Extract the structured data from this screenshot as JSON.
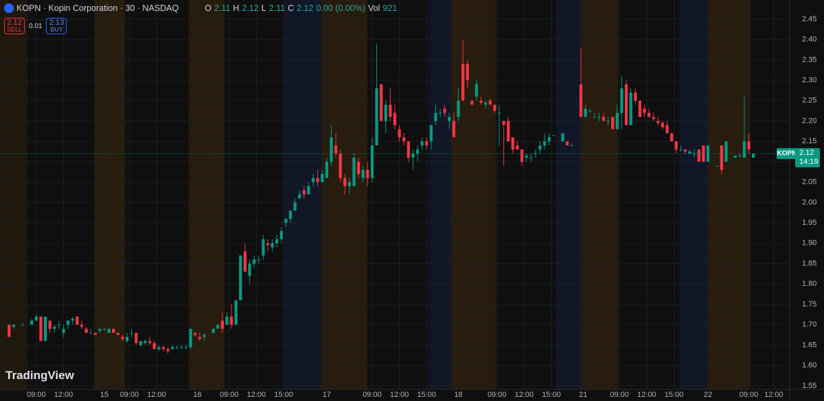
{
  "header": {
    "title": "KOPN · Kopin Corporation · 30 · NASDAQ",
    "o_label": "O",
    "open": 2.11,
    "h_label": "H",
    "high": 2.12,
    "l_label": "L",
    "low": 2.11,
    "c_label": "C",
    "close": 2.12,
    "change": "0.00 (0.00%)",
    "vol_label": "Vol",
    "volume": 921,
    "sell_price": 2.12,
    "sell_label": "SELL",
    "spread": 0.01,
    "buy_price": 2.13,
    "buy_label": "BUY",
    "logo": "TradingView"
  },
  "chart_data": {
    "type": "candlestick",
    "up_color": "#089981",
    "down_color": "#f23645",
    "xlim": [
      -2,
      172
    ],
    "ylim": [
      1.538,
      2.497
    ],
    "yticks": [
      1.55,
      {
        "value": 1.6,
        "label": "1.60"
      },
      1.65,
      {
        "value": 1.7,
        "label": "1.70"
      },
      1.75,
      {
        "value": 1.8,
        "label": "1.80"
      },
      1.85,
      {
        "value": 1.9,
        "label": "1.90"
      },
      1.95,
      {
        "value": 2,
        "label": "2.00"
      },
      2.05,
      {
        "value": 2.1,
        "label": "2.10"
      },
      2.15,
      {
        "value": 2.2,
        "label": "2.20"
      },
      2.25,
      {
        "value": 2.3,
        "label": "2.30"
      },
      2.35,
      {
        "value": 2.4,
        "label": "2.40"
      },
      2.45
    ],
    "xticks": [
      {
        "value": 6,
        "label": "09:00"
      },
      {
        "value": 12,
        "label": "12:00"
      },
      {
        "value": 21,
        "label": "15"
      },
      {
        "value": 26.5,
        "label": "09:00"
      },
      {
        "value": 32.5,
        "label": "12:00"
      },
      {
        "value": 41.5,
        "label": "16"
      },
      {
        "value": 48.5,
        "label": "09:00"
      },
      {
        "value": 54.5,
        "label": "12:00"
      },
      {
        "value": 60.5,
        "label": "15:00"
      },
      {
        "value": 70,
        "label": "17"
      },
      {
        "value": 80,
        "label": "09:00"
      },
      {
        "value": 86,
        "label": "12:00"
      },
      {
        "value": 92,
        "label": "15:00"
      },
      {
        "value": 99,
        "label": "18"
      },
      {
        "value": 107.5,
        "label": "09:00"
      },
      {
        "value": 113.5,
        "label": "12:00"
      },
      {
        "value": 119.5,
        "label": "15:00"
      },
      {
        "value": 126.5,
        "label": "21"
      },
      {
        "value": 134.5,
        "label": "09:00"
      },
      {
        "value": 140.5,
        "label": "12:00"
      },
      {
        "value": 146.5,
        "label": "15:00"
      },
      {
        "value": 154,
        "label": "22"
      },
      {
        "value": 163,
        "label": "09:00"
      },
      {
        "value": 168.5,
        "label": "12:00"
      }
    ],
    "x": [
      0,
      1,
      3,
      5,
      6,
      7,
      8,
      9,
      10,
      11,
      12,
      13,
      14,
      15,
      16,
      17,
      18,
      19,
      20,
      21,
      22,
      23,
      24,
      25,
      26,
      27,
      28,
      29,
      30,
      31,
      32,
      33,
      34,
      35,
      36,
      37,
      38,
      39,
      40,
      41,
      42,
      43,
      45,
      46,
      47,
      48,
      49,
      50,
      51,
      52,
      53,
      54,
      55,
      56,
      57,
      58,
      59,
      60,
      61,
      62,
      63,
      64,
      65,
      66,
      67,
      68,
      69,
      70,
      71,
      72,
      73,
      74,
      75,
      76,
      77,
      78,
      79,
      80,
      81,
      82,
      83,
      84,
      85,
      86,
      87,
      88,
      89,
      90,
      91,
      92,
      93,
      94,
      95,
      96,
      97,
      98,
      99,
      100,
      101,
      102,
      103,
      104,
      105,
      106,
      107,
      108,
      109,
      110,
      111,
      112,
      113,
      114,
      115,
      116,
      117,
      118,
      119,
      120,
      122,
      123,
      124,
      126,
      127,
      128,
      129,
      130,
      131,
      132,
      133,
      134,
      135,
      136,
      137,
      138,
      139,
      140,
      141,
      142,
      143,
      144,
      145,
      146,
      147,
      148,
      149,
      150,
      151,
      152,
      153,
      154,
      156,
      157,
      158,
      160,
      161,
      162,
      163,
      164
    ],
    "open": [
      1.7,
      1.695,
      1.7,
      1.7,
      1.71,
      1.72,
      1.66,
      1.71,
      1.69,
      1.7,
      1.68,
      1.7,
      1.71,
      1.72,
      1.7,
      1.69,
      1.68,
      1.68,
      1.685,
      1.69,
      1.68,
      1.69,
      1.68,
      1.67,
      1.66,
      1.68,
      1.68,
      1.65,
      1.655,
      1.66,
      1.655,
      1.64,
      1.645,
      1.64,
      1.64,
      1.645,
      1.645,
      1.645,
      1.645,
      1.68,
      1.67,
      1.67,
      1.68,
      1.69,
      1.71,
      1.7,
      1.72,
      1.7,
      1.76,
      1.88,
      1.82,
      1.85,
      1.86,
      1.87,
      1.9,
      1.89,
      1.9,
      1.91,
      1.95,
      1.96,
      1.98,
      2.01,
      2.03,
      2.02,
      2.05,
      2.06,
      2.05,
      2.06,
      2.1,
      2.14,
      2.12,
      2.06,
      2.04,
      2.04,
      2.1,
      2.06,
      2.08,
      2.06,
      2.14,
      2.29,
      2.2,
      2.24,
      2.22,
      2.18,
      2.16,
      2.15,
      2.11,
      2.12,
      2.14,
      2.15,
      2.15,
      2.2,
      2.22,
      2.23,
      2.2,
      2.2,
      2.21,
      2.34,
      2.34,
      2.25,
      2.26,
      2.25,
      2.24,
      2.25,
      2.24,
      2.22,
      2.2,
      2.2,
      2.16,
      2.14,
      2.13,
      2.11,
      2.11,
      2.12,
      2.13,
      2.14,
      2.15,
      2.165,
      2.15,
      2.15,
      2.14,
      2.29,
      2.21,
      2.225,
      2.21,
      2.21,
      2.21,
      2.2,
      2.21,
      2.18,
      2.22,
      2.29,
      2.19,
      2.27,
      2.25,
      2.23,
      2.22,
      2.21,
      2.2,
      2.195,
      2.19,
      2.17,
      2.15,
      2.13,
      2.13,
      2.12,
      2.12,
      2.13,
      2.14,
      2.1,
      2.09,
      2.14,
      2.1,
      2.11,
      2.115,
      2.11,
      2.15,
      2.11
    ],
    "high": [
      1.7,
      1.7,
      1.705,
      1.715,
      1.725,
      1.72,
      1.72,
      1.71,
      1.7,
      1.71,
      1.7,
      1.71,
      1.72,
      1.72,
      1.71,
      1.695,
      1.69,
      1.68,
      1.69,
      1.69,
      1.69,
      1.69,
      1.68,
      1.675,
      1.68,
      1.69,
      1.68,
      1.66,
      1.665,
      1.67,
      1.66,
      1.65,
      1.65,
      1.645,
      1.65,
      1.65,
      1.65,
      1.65,
      1.69,
      1.68,
      1.68,
      1.68,
      1.69,
      1.7,
      1.73,
      1.73,
      1.75,
      1.76,
      1.87,
      1.9,
      1.86,
      1.87,
      1.87,
      1.92,
      1.91,
      1.91,
      1.92,
      1.94,
      1.96,
      1.98,
      2.01,
      2.03,
      2.04,
      2.05,
      2.07,
      2.08,
      2.08,
      2.11,
      2.19,
      2.17,
      2.13,
      2.07,
      2.06,
      2.12,
      2.11,
      2.09,
      2.1,
      2.16,
      2.39,
      2.29,
      2.25,
      2.28,
      2.24,
      2.19,
      2.17,
      2.15,
      2.13,
      2.14,
      2.16,
      2.16,
      2.19,
      2.24,
      2.23,
      2.24,
      2.22,
      2.22,
      2.28,
      2.4,
      2.35,
      2.25,
      2.3,
      2.26,
      2.25,
      2.255,
      2.24,
      2.24,
      2.2,
      2.21,
      2.16,
      2.15,
      2.13,
      2.12,
      2.12,
      2.13,
      2.15,
      2.17,
      2.17,
      2.165,
      2.17,
      2.15,
      2.145,
      2.38,
      2.24,
      2.23,
      2.22,
      2.22,
      2.22,
      2.21,
      2.21,
      2.24,
      2.31,
      2.3,
      2.28,
      2.28,
      2.25,
      2.24,
      2.23,
      2.22,
      2.21,
      2.2,
      2.2,
      2.17,
      2.15,
      2.14,
      2.13,
      2.13,
      2.13,
      2.13,
      2.14,
      2.14,
      2.09,
      2.14,
      2.15,
      2.11,
      2.12,
      2.26,
      2.17,
      2.12
    ],
    "low": [
      1.67,
      1.69,
      1.7,
      1.7,
      1.71,
      1.66,
      1.66,
      1.68,
      1.68,
      1.69,
      1.67,
      1.69,
      1.7,
      1.7,
      1.69,
      1.68,
      1.68,
      1.675,
      1.68,
      1.685,
      1.68,
      1.68,
      1.675,
      1.66,
      1.655,
      1.67,
      1.65,
      1.645,
      1.65,
      1.65,
      1.64,
      1.635,
      1.635,
      1.63,
      1.64,
      1.64,
      1.64,
      1.64,
      1.64,
      1.67,
      1.66,
      1.66,
      1.68,
      1.69,
      1.68,
      1.7,
      1.69,
      1.7,
      1.76,
      1.83,
      1.8,
      1.84,
      1.85,
      1.86,
      1.88,
      1.88,
      1.89,
      1.9,
      1.94,
      1.95,
      1.98,
      2.01,
      2.01,
      2.02,
      2.04,
      2.04,
      2.05,
      2.06,
      2.09,
      2.11,
      2.05,
      2.02,
      2.02,
      2.04,
      2.06,
      2.05,
      2.04,
      2.05,
      2.14,
      2.2,
      2.17,
      2.2,
      2.18,
      2.15,
      2.14,
      2.1,
      2.08,
      2.1,
      2.13,
      2.13,
      2.13,
      2.19,
      2.21,
      2.21,
      2.18,
      2.16,
      2.2,
      2.25,
      2.28,
      2.24,
      2.25,
      2.24,
      2.23,
      2.24,
      2.22,
      2.14,
      2.09,
      2.15,
      2.12,
      2.13,
      2.09,
      2.1,
      2.1,
      2.11,
      2.12,
      2.13,
      2.14,
      2.165,
      2.15,
      2.14,
      2.14,
      2.21,
      2.21,
      2.22,
      2.21,
      2.2,
      2.2,
      2.19,
      2.18,
      2.18,
      2.18,
      2.19,
      2.19,
      2.24,
      2.21,
      2.21,
      2.21,
      2.2,
      2.19,
      2.18,
      2.17,
      2.15,
      2.12,
      2.125,
      2.12,
      2.12,
      2.11,
      2.1,
      2.1,
      2.1,
      2.09,
      2.07,
      2.1,
      2.11,
      2.11,
      2.11,
      2.12,
      2.11
    ],
    "close": [
      1.67,
      1.7,
      1.7,
      1.71,
      1.72,
      1.66,
      1.72,
      1.69,
      1.695,
      1.7,
      1.69,
      1.71,
      1.715,
      1.7,
      1.695,
      1.68,
      1.68,
      1.675,
      1.69,
      1.69,
      1.69,
      1.68,
      1.675,
      1.665,
      1.67,
      1.68,
      1.655,
      1.66,
      1.66,
      1.655,
      1.64,
      1.645,
      1.64,
      1.635,
      1.645,
      1.645,
      1.645,
      1.645,
      1.69,
      1.675,
      1.665,
      1.675,
      1.69,
      1.7,
      1.69,
      1.72,
      1.7,
      1.76,
      1.87,
      1.83,
      1.85,
      1.86,
      1.86,
      1.91,
      1.895,
      1.9,
      1.91,
      1.93,
      1.96,
      1.98,
      2.0,
      2.02,
      2.02,
      2.04,
      2.06,
      2.05,
      2.07,
      2.1,
      2.16,
      2.12,
      2.06,
      2.04,
      2.05,
      2.11,
      2.07,
      2.08,
      2.06,
      2.14,
      2.28,
      2.2,
      2.24,
      2.21,
      2.19,
      2.16,
      2.15,
      2.11,
      2.12,
      2.13,
      2.15,
      2.14,
      2.19,
      2.22,
      2.22,
      2.22,
      2.21,
      2.16,
      2.25,
      2.25,
      2.3,
      2.24,
      2.29,
      2.245,
      2.245,
      2.24,
      2.225,
      2.22,
      2.19,
      2.15,
      2.13,
      2.13,
      2.1,
      2.115,
      2.11,
      2.12,
      2.14,
      2.15,
      2.16,
      2.165,
      2.17,
      2.14,
      2.14,
      2.21,
      2.23,
      2.225,
      2.21,
      2.21,
      2.2,
      2.2,
      2.18,
      2.22,
      2.28,
      2.19,
      2.27,
      2.25,
      2.21,
      2.22,
      2.21,
      2.205,
      2.195,
      2.185,
      2.17,
      2.15,
      2.13,
      2.13,
      2.125,
      2.125,
      2.12,
      2.1,
      2.1,
      2.14,
      2.09,
      2.08,
      2.15,
      2.115,
      2.115,
      2.15,
      2.13,
      2.12
    ],
    "last_price_label": "KOPN",
    "last_price": 2.12,
    "countdown": "14:19"
  }
}
